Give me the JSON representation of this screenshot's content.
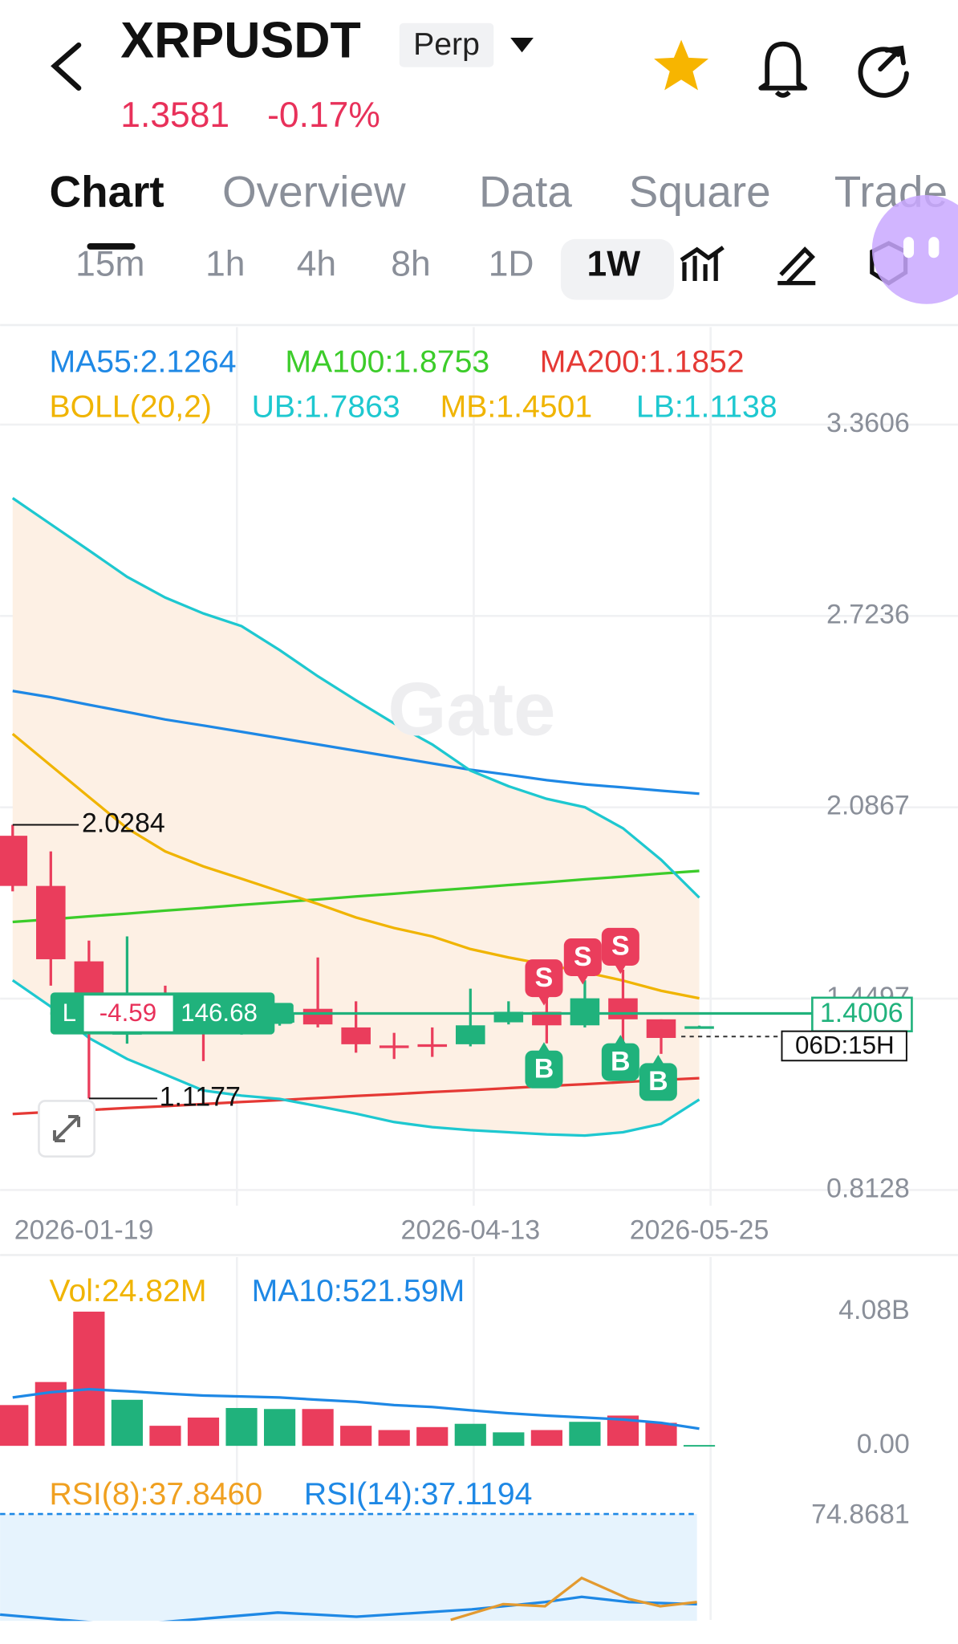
{
  "header": {
    "symbol": "XRPUSDT",
    "contract": "Perp",
    "price": "1.3581",
    "change": "-0.17%"
  },
  "tabs": [
    "Chart",
    "Overview",
    "Data",
    "Square",
    "Trade"
  ],
  "intervals": [
    "15m",
    "1h",
    "4h",
    "8h",
    "1D",
    "1W"
  ],
  "watermark": "Gate",
  "chart_data": {
    "type": "candlestick",
    "boll_label": "BOLL(20,2)",
    "indicators": [
      {
        "name": "MA55:2.1264",
        "color": "#1e88e5",
        "values": [
          2.474,
          2.453,
          2.428,
          2.404,
          2.379,
          2.359,
          2.338,
          2.317,
          2.296,
          2.275,
          2.254,
          2.233,
          2.212,
          2.195,
          2.177,
          2.163,
          2.153,
          2.142,
          2.132
        ]
      },
      {
        "name": "MA100:1.8753",
        "color": "#3ccc2a",
        "values": [
          1.705,
          1.714,
          1.724,
          1.733,
          1.743,
          1.752,
          1.762,
          1.771,
          1.78,
          1.79,
          1.799,
          1.809,
          1.818,
          1.828,
          1.837,
          1.847,
          1.856,
          1.866,
          1.875
        ]
      },
      {
        "name": "MA200:1.1852",
        "color": "#e53935",
        "values": [
          1.066,
          1.073,
          1.079,
          1.086,
          1.092,
          1.099,
          1.106,
          1.112,
          1.119,
          1.126,
          1.132,
          1.139,
          1.145,
          1.152,
          1.159,
          1.165,
          1.172,
          1.179,
          1.185
        ]
      },
      {
        "name": "UB:1.7863",
        "color": "#1ec8d0",
        "values": [
          3.116,
          3.029,
          2.942,
          2.854,
          2.785,
          2.732,
          2.69,
          2.61,
          2.523,
          2.443,
          2.366,
          2.296,
          2.209,
          2.157,
          2.115,
          2.087,
          2.017,
          1.912,
          1.786
        ]
      },
      {
        "name": "MB:1.4501",
        "color": "#f0b400",
        "values": [
          2.331,
          2.226,
          2.121,
          2.017,
          1.94,
          1.89,
          1.849,
          1.807,
          1.765,
          1.72,
          1.685,
          1.657,
          1.615,
          1.587,
          1.563,
          1.538,
          1.51,
          1.476,
          1.451
        ]
      },
      {
        "name": "LB:1.1138",
        "color": "#1ec8d0",
        "values": [
          1.511,
          1.423,
          1.319,
          1.249,
          1.197,
          1.144,
          1.127,
          1.116,
          1.092,
          1.067,
          1.039,
          1.022,
          1.012,
          1.005,
          0.998,
          0.994,
          1.005,
          1.033,
          1.114
        ]
      }
    ],
    "categories": [
      "2026-01-19",
      null,
      null,
      null,
      null,
      null,
      null,
      null,
      null,
      null,
      null,
      null,
      "2026-04-13",
      null,
      null,
      null,
      null,
      null,
      "2026-05-25"
    ],
    "candles": [
      {
        "open": 1.992,
        "high": 2.0284,
        "low": 1.807,
        "close": 1.825
      },
      {
        "open": 1.825,
        "high": 1.94,
        "low": 1.493,
        "close": 1.581
      },
      {
        "open": 1.574,
        "high": 1.643,
        "low": 1.1177,
        "close": 1.458
      },
      {
        "open": 1.33,
        "high": 1.657,
        "low": 1.3,
        "close": 1.4
      },
      {
        "open": 1.4,
        "high": 1.493,
        "low": 1.34,
        "close": 1.38
      },
      {
        "open": 1.38,
        "high": 1.42,
        "low": 1.242,
        "close": 1.37
      },
      {
        "open": 1.37,
        "high": 1.41,
        "low": 1.33,
        "close": 1.38
      },
      {
        "open": 1.37,
        "high": 1.42,
        "low": 1.36,
        "close": 1.4
      },
      {
        "open": 1.416,
        "high": 1.587,
        "low": 1.354,
        "close": 1.364
      },
      {
        "open": 1.354,
        "high": 1.441,
        "low": 1.27,
        "close": 1.298
      },
      {
        "open": 1.294,
        "high": 1.336,
        "low": 1.249,
        "close": 1.29
      },
      {
        "open": 1.298,
        "high": 1.354,
        "low": 1.256,
        "close": 1.294
      },
      {
        "open": 1.298,
        "high": 1.483,
        "low": 1.291,
        "close": 1.361
      },
      {
        "open": 1.371,
        "high": 1.441,
        "low": 1.364,
        "close": 1.406
      },
      {
        "open": 1.406,
        "high": 1.476,
        "low": 1.301,
        "close": 1.361
      },
      {
        "open": 1.361,
        "high": 1.511,
        "low": 1.354,
        "close": 1.451
      },
      {
        "open": 1.451,
        "high": 1.546,
        "low": 1.301,
        "close": 1.381
      },
      {
        "open": 1.381,
        "high": 1.381,
        "low": 1.266,
        "close": 1.319
      },
      {
        "open": 1.357,
        "high": 1.36,
        "low": 1.356,
        "close": 1.358
      }
    ],
    "ylim": [
      0.8128,
      3.3606
    ],
    "yticks": [
      0.8128,
      1.4497,
      2.0867,
      2.7236,
      3.3606
    ],
    "grid": true,
    "up_color": "#20b27c",
    "down_color": "#ea3d5c",
    "high_mark": 2.0284,
    "low_mark": 1.1177,
    "last_price": 1.4006,
    "countdown": "06D:15H",
    "position": {
      "side": "L",
      "pnl": "-4.59",
      "size": "146.68"
    },
    "markers": [
      "S",
      "S",
      "S",
      "B",
      "B",
      "B"
    ],
    "volume": {
      "label": "Vol:24.82M",
      "ma_label": "MA10:521.59M",
      "ma_color": "#1e88e5",
      "values": [
        1.24,
        1.94,
        4.08,
        1.4,
        0.61,
        0.86,
        1.15,
        1.12,
        1.12,
        0.61,
        0.48,
        0.57,
        0.67,
        0.41,
        0.48,
        0.73,
        0.92,
        0.7,
        0.02482
      ],
      "ma_values": [
        1.47,
        1.63,
        1.72,
        1.66,
        1.59,
        1.53,
        1.5,
        1.47,
        1.4,
        1.34,
        1.24,
        1.18,
        1.08,
        0.99,
        0.92,
        0.86,
        0.8,
        0.7,
        0.52159
      ],
      "ylim": [
        0,
        4.08
      ],
      "yticks": [
        {
          "value": 4.08,
          "label": "4.08B"
        },
        {
          "value": 0,
          "label": "0.00"
        }
      ]
    },
    "rsi": {
      "labels": [
        "RSI(8):37.8460",
        "RSI(14):37.1194"
      ],
      "yticks": [
        74.8681
      ]
    }
  }
}
